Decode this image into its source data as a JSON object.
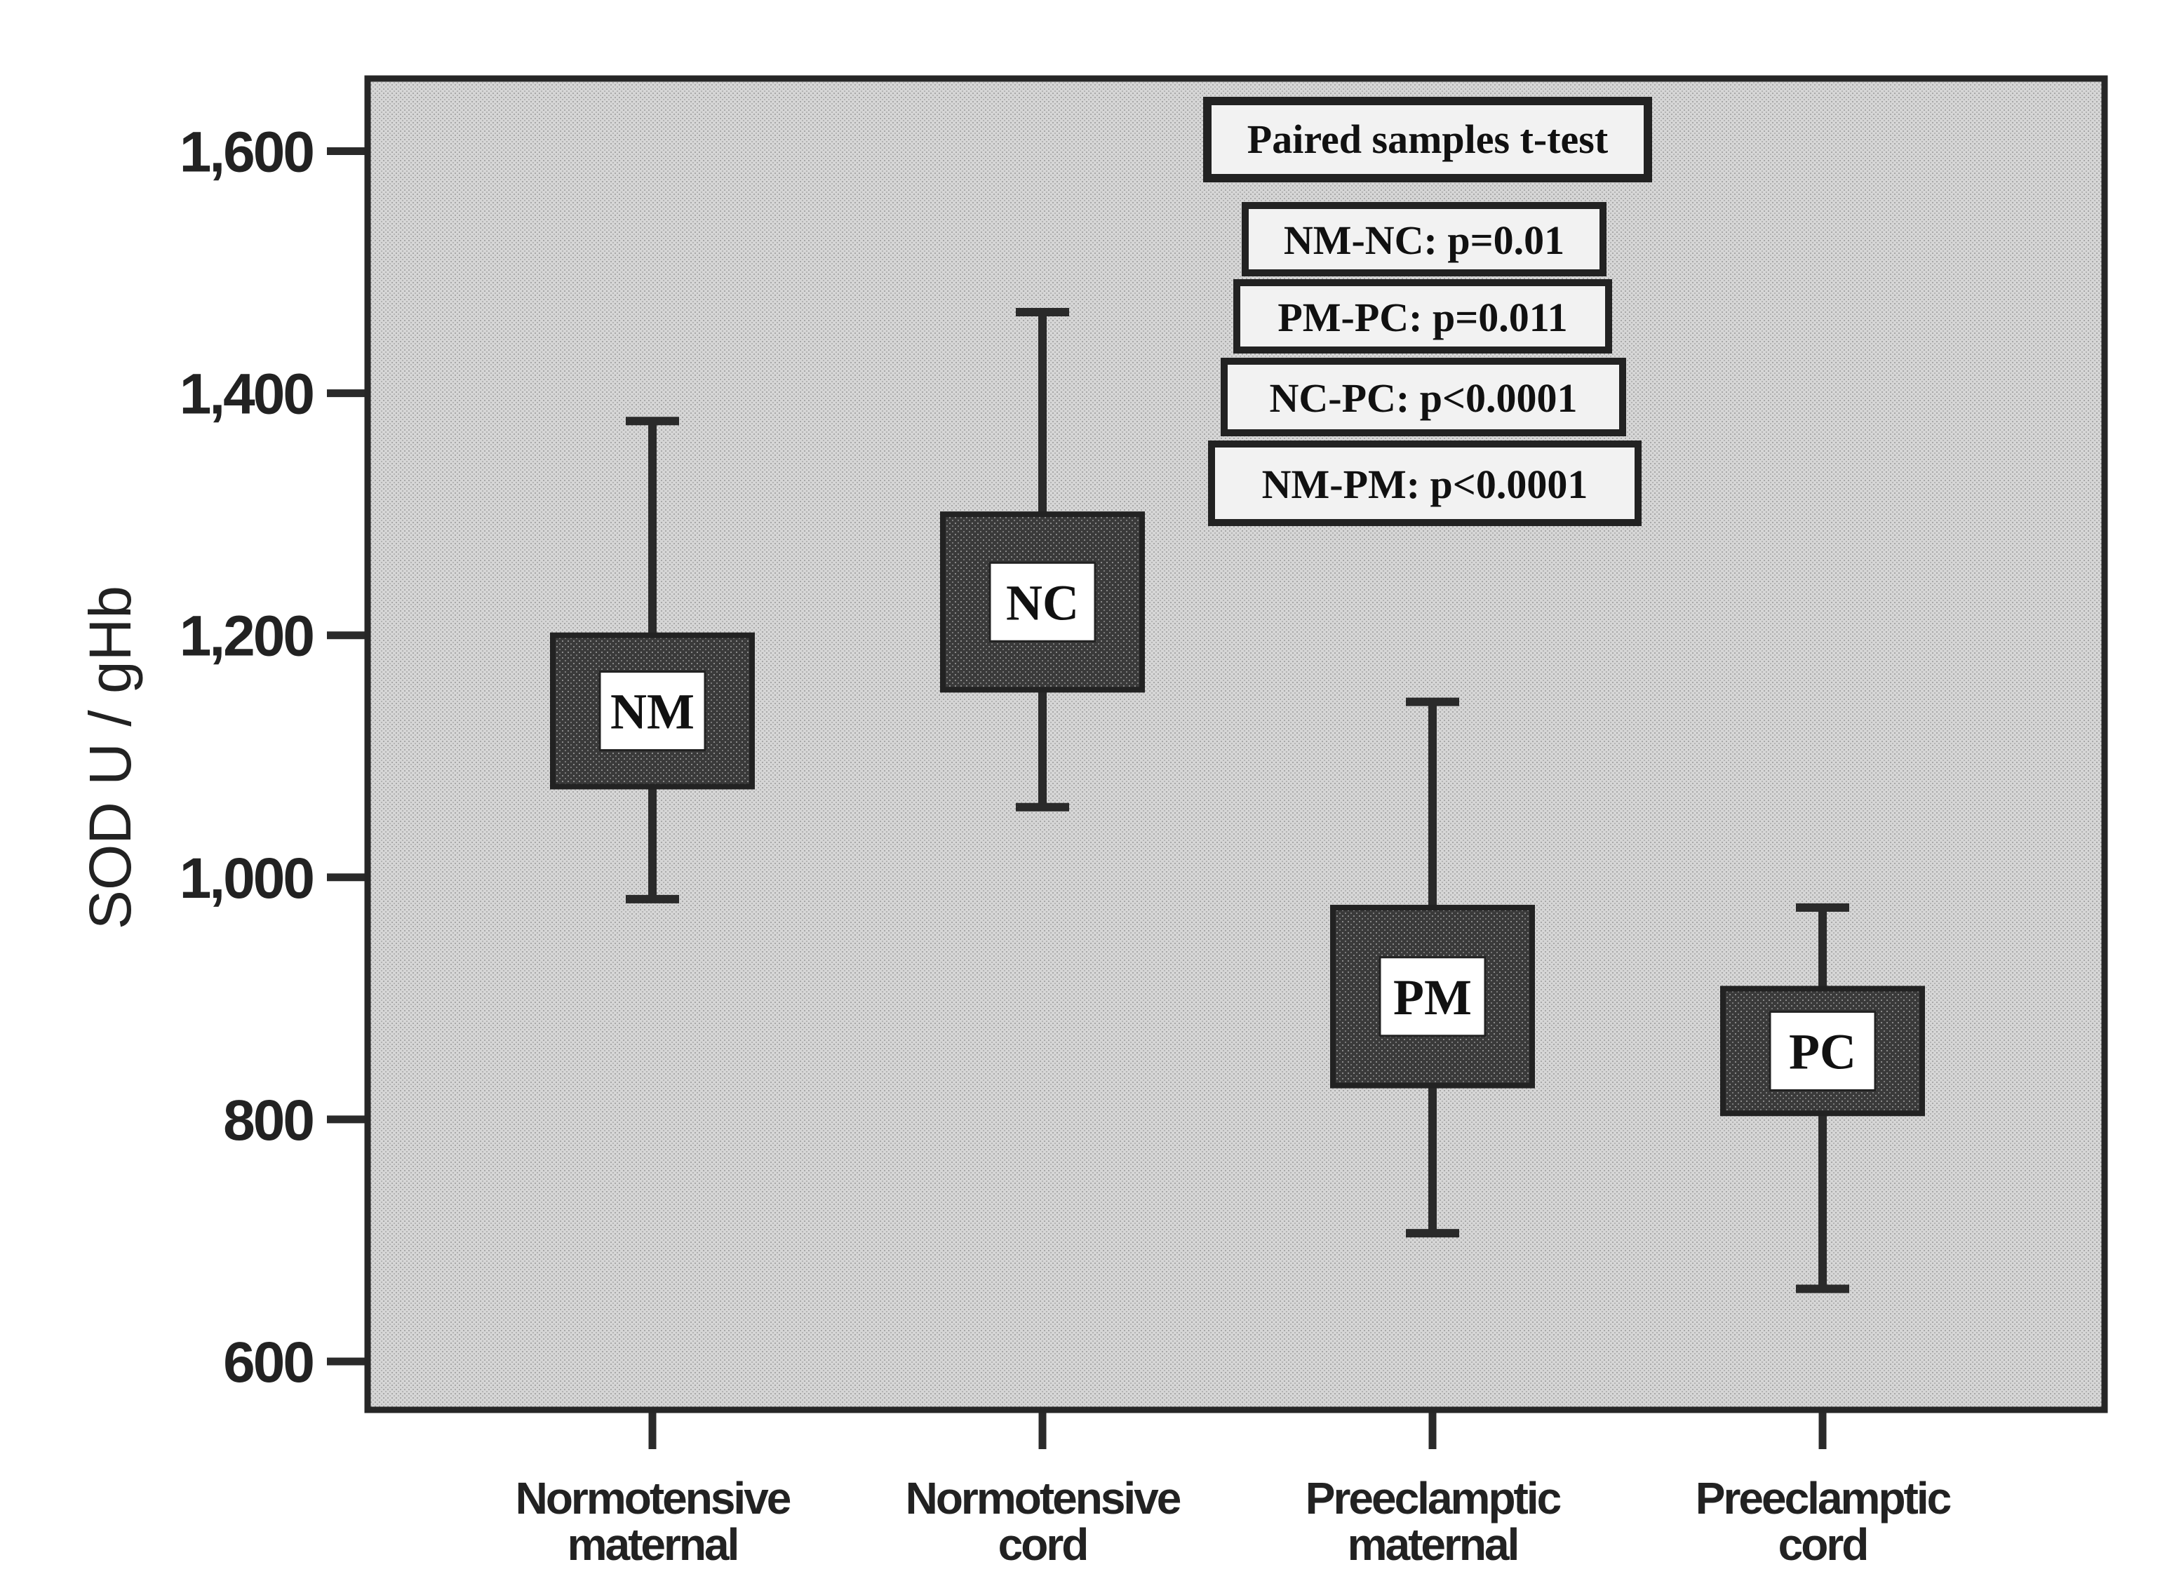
{
  "chart_data": {
    "type": "box",
    "ylabel": "SOD  U / gHb",
    "ylim": [
      560,
      1660
    ],
    "yticks": [
      600,
      800,
      1000,
      1200,
      1400,
      1600
    ],
    "ytick_labels": [
      "600",
      "800",
      "1,000",
      "1,200",
      "1,400",
      "1,600"
    ],
    "categories": [
      "Normotensive maternal",
      "Normotensive cord",
      "Preeclamptic maternal",
      "Preeclamptic cord"
    ],
    "category_lines": [
      [
        "Normotensive",
        "maternal"
      ],
      [
        "Normotensive",
        "cord"
      ],
      [
        "Preeclamptic",
        "maternal"
      ],
      [
        "Preeclamptic",
        "cord"
      ]
    ],
    "boxes": [
      {
        "label": "NM",
        "whisker_low": 982,
        "q1": 1075,
        "q3": 1200,
        "whisker_high": 1377
      },
      {
        "label": "NC",
        "whisker_low": 1058,
        "q1": 1155,
        "q3": 1300,
        "whisker_high": 1467
      },
      {
        "label": "PM",
        "whisker_low": 706,
        "q1": 828,
        "q3": 975,
        "whisker_high": 1145
      },
      {
        "label": "PC",
        "whisker_low": 660,
        "q1": 805,
        "q3": 908,
        "whisker_high": 975
      }
    ],
    "annotations": {
      "title": "Paired samples t-test",
      "comparisons": [
        "NM-NC: p=0.01",
        "PM-PC: p=0.011",
        "NC-PC: p<0.0001",
        "NM-PM: p<0.0001"
      ]
    },
    "colors": {
      "plot_bg": "#d4d4d4",
      "box_fill": "#3c3c3c",
      "line": "#2a2a2a"
    }
  }
}
